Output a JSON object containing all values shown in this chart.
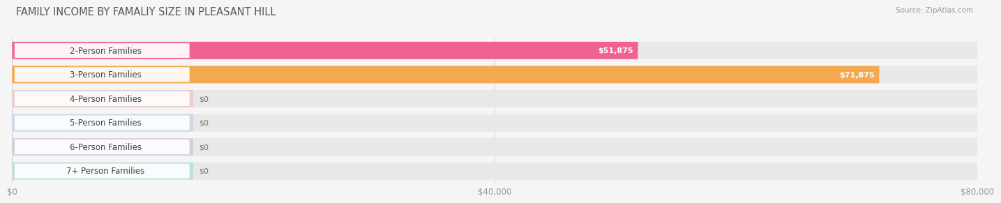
{
  "title": "FAMILY INCOME BY FAMALIY SIZE IN PLEASANT HILL",
  "source": "Source: ZipAtlas.com",
  "categories": [
    "2-Person Families",
    "3-Person Families",
    "4-Person Families",
    "5-Person Families",
    "6-Person Families",
    "7+ Person Families"
  ],
  "values": [
    51875,
    71875,
    0,
    0,
    0,
    0
  ],
  "bar_colors": [
    "#f06292",
    "#f5a94e",
    "#f4aaaa",
    "#aac4e8",
    "#c4aad4",
    "#8ed4d8"
  ],
  "value_labels": [
    "$51,875",
    "$71,875",
    "$0",
    "$0",
    "$0",
    "$0"
  ],
  "xlim": [
    0,
    80000
  ],
  "xticks": [
    0,
    40000,
    80000
  ],
  "xticklabels": [
    "$0",
    "$40,000",
    "$80,000"
  ],
  "background_color": "#f5f5f5",
  "bar_bg_color": "#e8e8e8",
  "title_fontsize": 10.5,
  "label_fontsize": 8.5,
  "value_fontsize": 8.0
}
